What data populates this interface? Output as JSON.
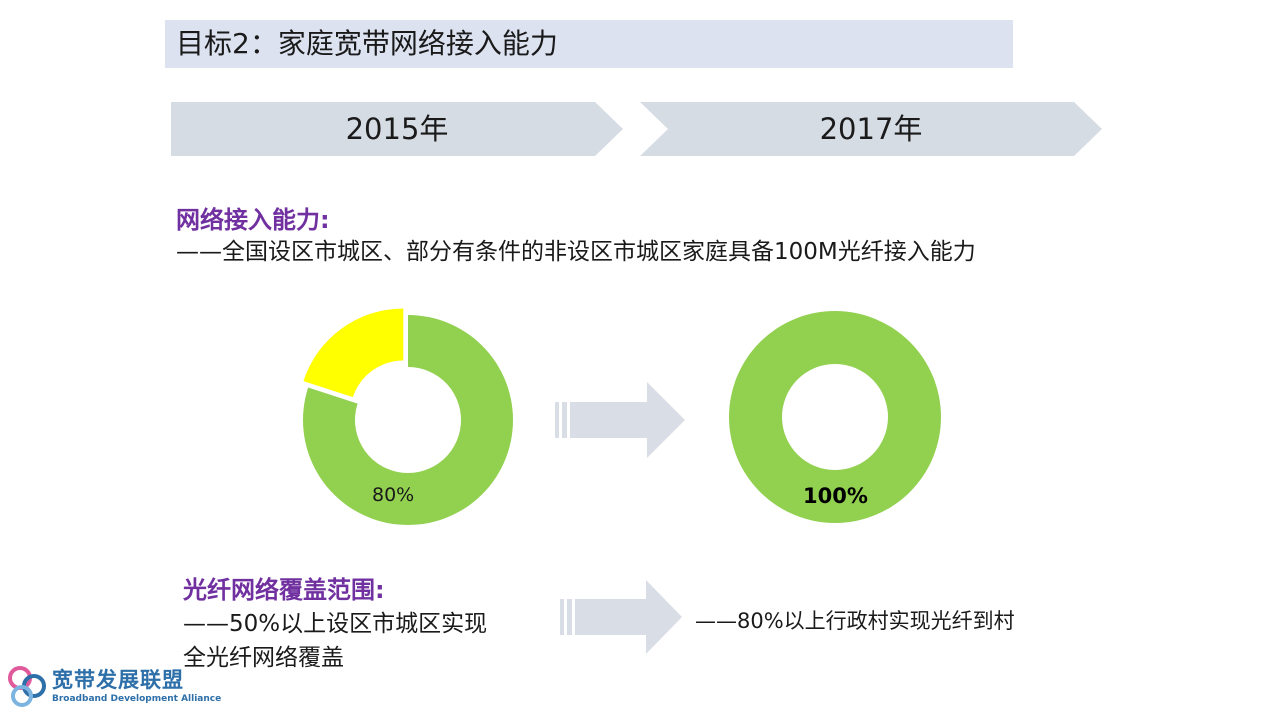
{
  "title": "目标2：家庭宽带网络接入能力",
  "timeline": {
    "from_label": "2015年",
    "to_label": "2017年"
  },
  "access": {
    "heading": "网络接入能力:",
    "description": "——全国设区市城区、部分有条件的非设区市城区家庭具备100M光纤接入能力"
  },
  "donut_2015": {
    "value_label": "80%",
    "covered_fraction": 0.8,
    "covered_color": "#92d050",
    "uncovered_color": "#ffff00"
  },
  "donut_2017": {
    "value_label": "100%",
    "covered_fraction": 1.0,
    "covered_color": "#92d050"
  },
  "coverage": {
    "heading": "光纤网络覆盖范围:",
    "line1": "——50%以上设区市城区实现",
    "line2": "全光纤网络覆盖",
    "target": "——80%以上行政村实现光纤到村"
  },
  "logo": {
    "name_cn": "宽带发展联盟",
    "name_en": "Broadband Development Alliance"
  },
  "colors": {
    "title_bg": "#dce2f0",
    "chevron_bg": "#d6dce4",
    "heading": "#7030a0",
    "arrow": "#d9dee6",
    "logo": "#2d6fa8"
  }
}
